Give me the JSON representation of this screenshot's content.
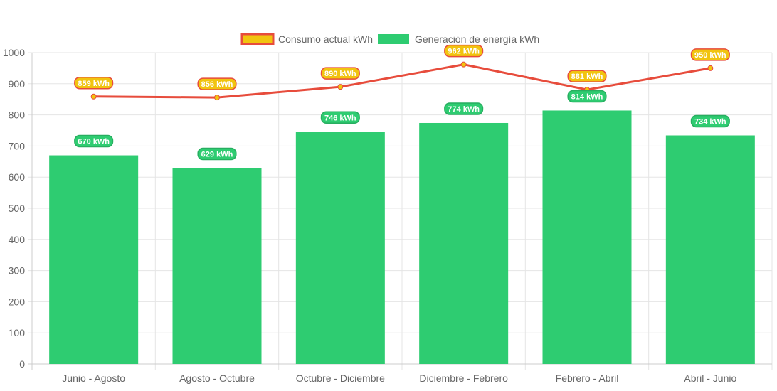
{
  "chart_data": {
    "type": "bar",
    "categories": [
      "Junio - Agosto",
      "Agosto - Octubre",
      "Octubre - Diciembre",
      "Diciembre - Febrero",
      "Febrero - Abril",
      "Abril - Junio"
    ],
    "series": [
      {
        "name": "Consumo actual kWh",
        "type": "line",
        "values": [
          859,
          856,
          890,
          962,
          881,
          950
        ],
        "labels": [
          "859 kWh",
          "856 kWh",
          "890 kWh",
          "962 kWh",
          "881 kWh",
          "950 kWh"
        ],
        "color": "#e74c3c",
        "fill": "#f1c40f"
      },
      {
        "name": "Generación de energía kWh",
        "type": "bar",
        "values": [
          670,
          629,
          746,
          774,
          814,
          734
        ],
        "labels": [
          "670 kWh",
          "629 kWh",
          "746 kWh",
          "774 kWh",
          "814 kWh",
          "734 kWh"
        ],
        "color": "#2ecc71"
      }
    ],
    "ylim": [
      0,
      1000
    ],
    "yticks": [
      "0",
      "100",
      "200",
      "300",
      "400",
      "500",
      "600",
      "700",
      "800",
      "900",
      "1000"
    ],
    "grid": true,
    "legend": "top-center"
  }
}
